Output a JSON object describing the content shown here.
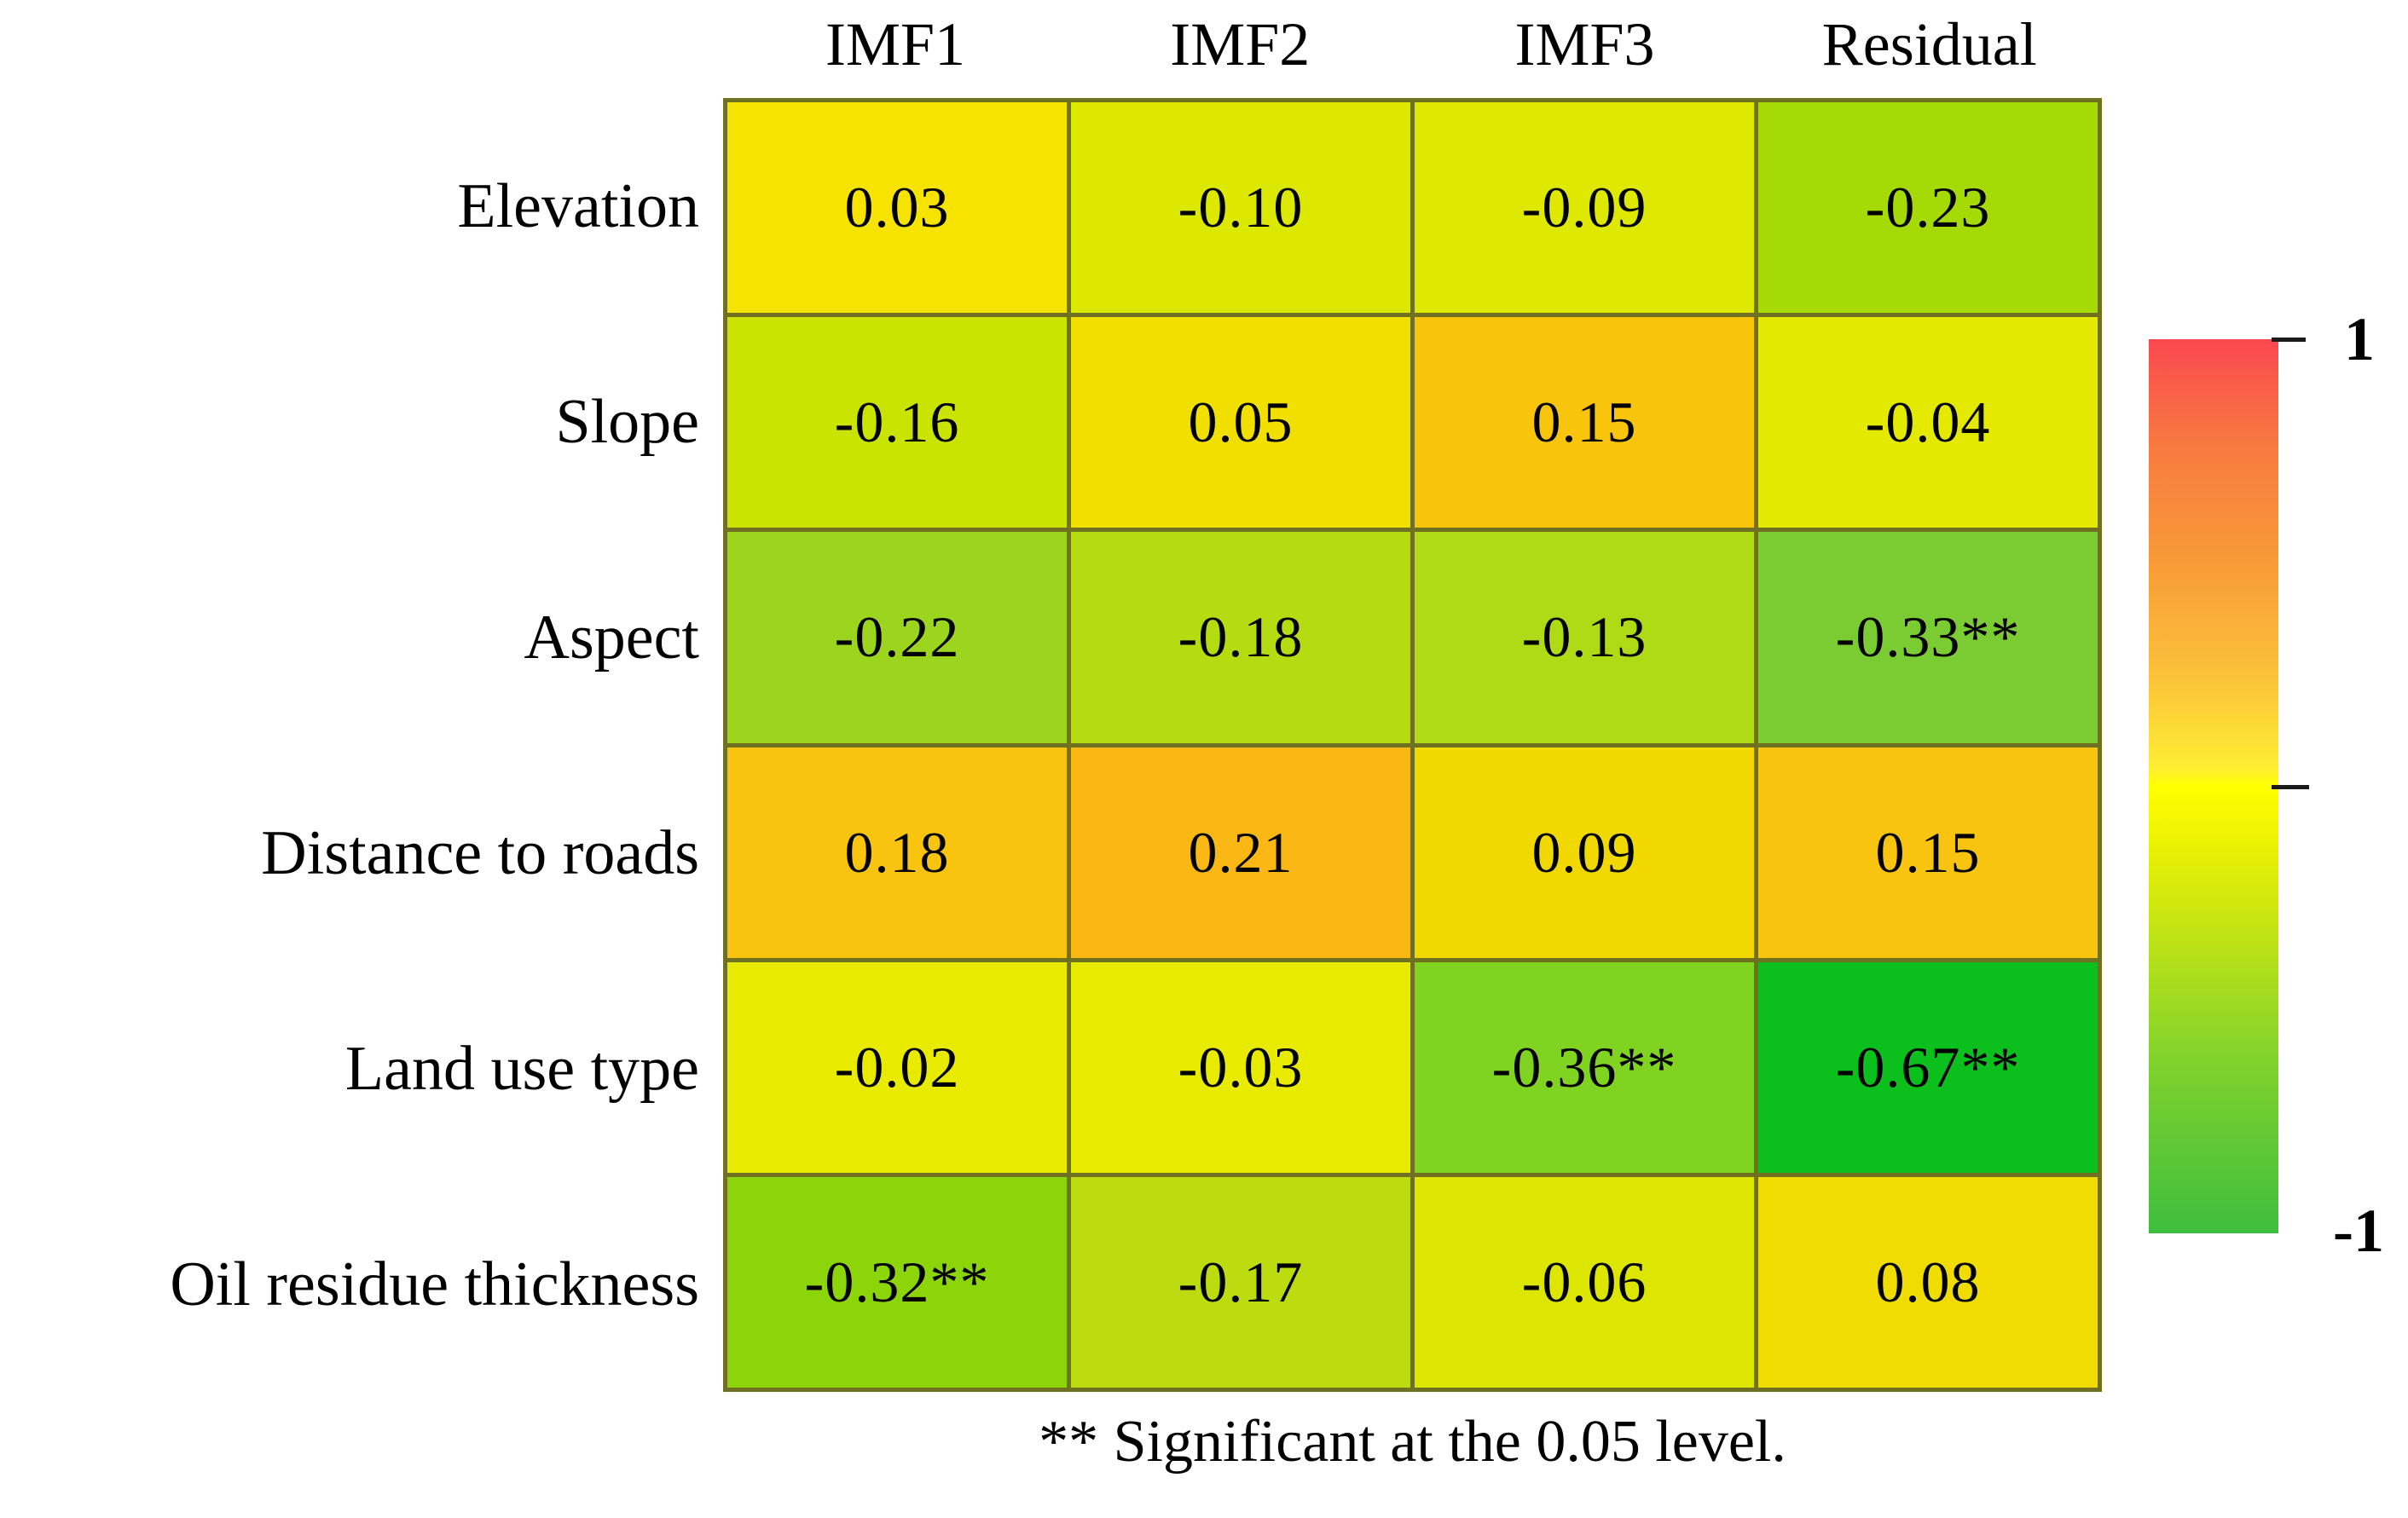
{
  "chart_data": {
    "type": "heatmap",
    "title": "",
    "columns": [
      "IMF1",
      "IMF2",
      "IMF3",
      "Residual"
    ],
    "rows": [
      "Elevation",
      "Slope",
      "Aspect",
      "Distance to roads",
      "Land use type",
      "Oil residue thickness"
    ],
    "value_range": [
      -1,
      1
    ],
    "cells": [
      [
        {
          "label": "0.03",
          "value": 0.03,
          "significant": false,
          "color": "#f6e300"
        },
        {
          "label": "-0.10",
          "value": -0.1,
          "significant": false,
          "color": "#dce800"
        },
        {
          "label": "-0.09",
          "value": -0.09,
          "significant": false,
          "color": "#dee800"
        },
        {
          "label": "-0.23",
          "value": -0.23,
          "significant": false,
          "color": "#a6da04"
        }
      ],
      [
        {
          "label": "-0.16",
          "value": -0.16,
          "significant": false,
          "color": "#c9e400"
        },
        {
          "label": "0.05",
          "value": 0.05,
          "significant": false,
          "color": "#f1df00"
        },
        {
          "label": "0.15",
          "value": 0.15,
          "significant": false,
          "color": "#f9c40c"
        },
        {
          "label": "-0.04",
          "value": -0.04,
          "significant": false,
          "color": "#e4e900"
        }
      ],
      [
        {
          "label": "-0.22",
          "value": -0.22,
          "significant": false,
          "color": "#9bd51e"
        },
        {
          "label": "-0.18",
          "value": -0.18,
          "significant": false,
          "color": "#b4dc10"
        },
        {
          "label": "-0.13",
          "value": -0.13,
          "significant": false,
          "color": "#aeda16"
        },
        {
          "label": "-0.33**",
          "value": -0.33,
          "significant": true,
          "color": "#7bcb33"
        }
      ],
      [
        {
          "label": "0.18",
          "value": 0.18,
          "significant": false,
          "color": "#f9c410"
        },
        {
          "label": "0.21",
          "value": 0.21,
          "significant": false,
          "color": "#fbb713"
        },
        {
          "label": "0.09",
          "value": 0.09,
          "significant": false,
          "color": "#f0d800"
        },
        {
          "label": "0.15",
          "value": 0.15,
          "significant": false,
          "color": "#f9c410"
        }
      ],
      [
        {
          "label": "-0.02",
          "value": -0.02,
          "significant": false,
          "color": "#e8ea00"
        },
        {
          "label": "-0.03",
          "value": -0.03,
          "significant": false,
          "color": "#e8ea00"
        },
        {
          "label": "-0.36**",
          "value": -0.36,
          "significant": true,
          "color": "#80d321"
        },
        {
          "label": "-0.67**",
          "value": -0.67,
          "significant": true,
          "color": "#0bbf1d"
        }
      ],
      [
        {
          "label": "-0.32**",
          "value": -0.32,
          "significant": true,
          "color": "#8bd508"
        },
        {
          "label": "-0.17",
          "value": -0.17,
          "significant": false,
          "color": "#bcdc10"
        },
        {
          "label": "-0.06",
          "value": -0.06,
          "significant": false,
          "color": "#dce600"
        },
        {
          "label": "0.08",
          "value": 0.08,
          "significant": false,
          "color": "#f0dc00"
        }
      ]
    ],
    "colorbar": {
      "max_label": "1",
      "min_label": "-1",
      "gradient_stops": [
        {
          "pos": 0,
          "color": "#fb4850"
        },
        {
          "pos": 12,
          "color": "#f87a40"
        },
        {
          "pos": 25,
          "color": "#f89b38"
        },
        {
          "pos": 38,
          "color": "#fbc33a"
        },
        {
          "pos": 48,
          "color": "#feee33"
        },
        {
          "pos": 50,
          "color": "#ffff00"
        },
        {
          "pos": 56,
          "color": "#eef203"
        },
        {
          "pos": 66,
          "color": "#c3e414"
        },
        {
          "pos": 80,
          "color": "#84d32c"
        },
        {
          "pos": 100,
          "color": "#3ebe3e"
        }
      ]
    },
    "footnote": "** Significant  at the 0.05 level.",
    "layout": {
      "grid_line_color": "#6f7120",
      "legend_position": "right",
      "grid": "on"
    }
  }
}
